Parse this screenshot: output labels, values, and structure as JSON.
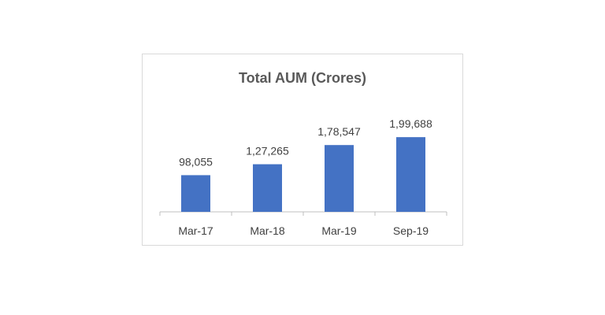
{
  "chart_data": {
    "type": "bar",
    "title": "Total AUM (Crores)",
    "categories": [
      "Mar-17",
      "Mar-18",
      "Mar-19",
      "Sep-19"
    ],
    "values": [
      98055,
      127265,
      178547,
      199688
    ],
    "data_labels": [
      "98,055",
      "1,27,265",
      "1,78,547",
      "1,99,688"
    ],
    "xlabel": "",
    "ylabel": "",
    "ylim": [
      0,
      200000
    ],
    "grid": false,
    "legend": "none",
    "colors": {
      "bar": "#4472c4",
      "text": "#404040",
      "title": "#595959",
      "axis": "#bfbfbf"
    }
  }
}
